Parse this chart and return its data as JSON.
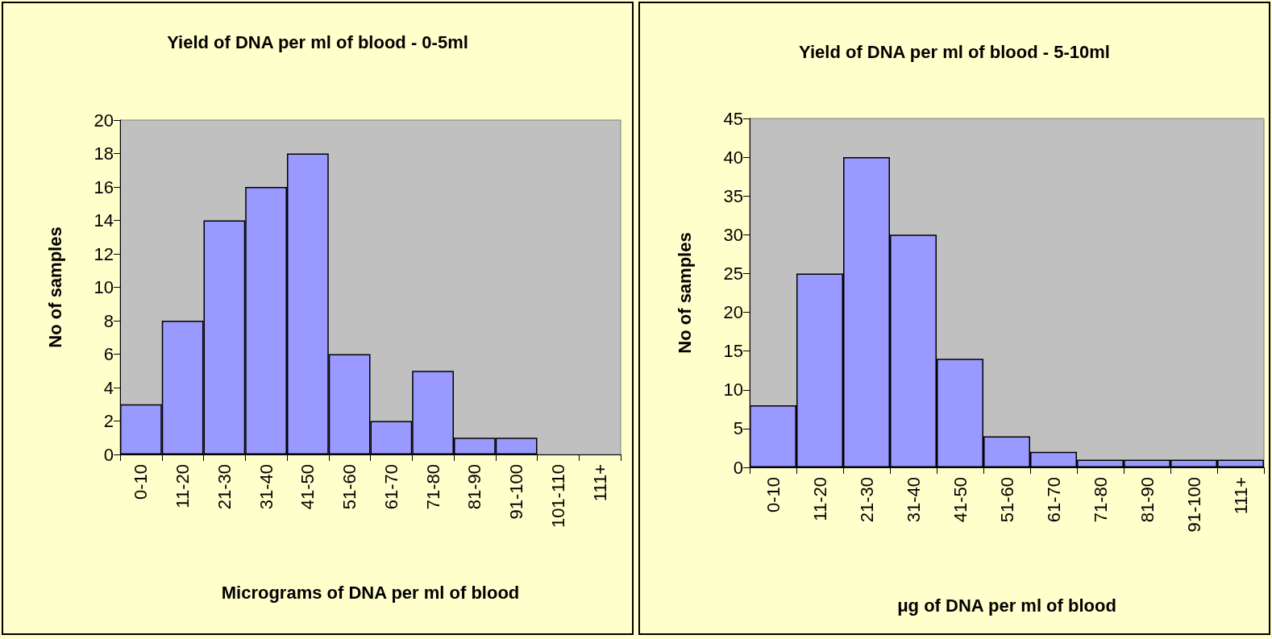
{
  "chart_data": [
    {
      "type": "bar",
      "title": "Yield of DNA per ml of blood - 0-5ml",
      "xlabel": "Micrograms of DNA per ml of blood",
      "ylabel": "No of samples",
      "categories": [
        "0-10",
        "11-20",
        "21-30",
        "31-40",
        "41-50",
        "51-60",
        "61-70",
        "71-80",
        "81-90",
        "91-100",
        "101-110",
        "111+"
      ],
      "values": [
        3,
        8,
        14,
        16,
        18,
        6,
        2,
        5,
        1,
        1,
        0,
        0
      ],
      "color": "#9999ff",
      "ylim": [
        0,
        20
      ],
      "yticks": [
        0,
        2,
        4,
        6,
        8,
        10,
        12,
        14,
        16,
        18,
        20
      ],
      "grid": false
    },
    {
      "type": "bar",
      "title": "Yield of DNA per ml of blood - 5-10ml",
      "xlabel": "μg of DNA per ml of blood",
      "ylabel": "No of samples",
      "categories": [
        "0-10",
        "11-20",
        "21-30",
        "31-40",
        "41-50",
        "51-60",
        "61-70",
        "71-80",
        "81-90",
        "91-100",
        "111+"
      ],
      "values": [
        8,
        25,
        40,
        30,
        14,
        4,
        2,
        1,
        1,
        1,
        1
      ],
      "color": "#9999ff",
      "ylim": [
        0,
        45
      ],
      "yticks": [
        0,
        5,
        10,
        15,
        20,
        25,
        30,
        35,
        40,
        45
      ],
      "grid": false
    }
  ]
}
